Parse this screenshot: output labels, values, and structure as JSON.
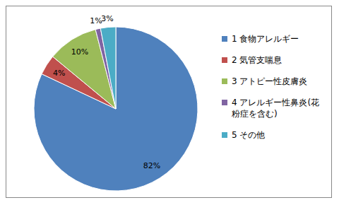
{
  "chart_data": {
    "type": "pie",
    "categories": [
      "1 食物アレルギー",
      "2 気管支喘息",
      "3 アトピー性皮膚炎",
      "4 アレルギー性鼻炎(花粉症を含む)",
      "5 その他"
    ],
    "values": [
      82,
      4,
      10,
      1,
      3
    ],
    "value_labels": [
      "82%",
      "4%",
      "10%",
      "1%",
      "3%"
    ],
    "colors": [
      "#4F81BD",
      "#C0504D",
      "#9BBB59",
      "#8064A2",
      "#4BACC6"
    ],
    "data_labels": true,
    "legend": "right"
  }
}
